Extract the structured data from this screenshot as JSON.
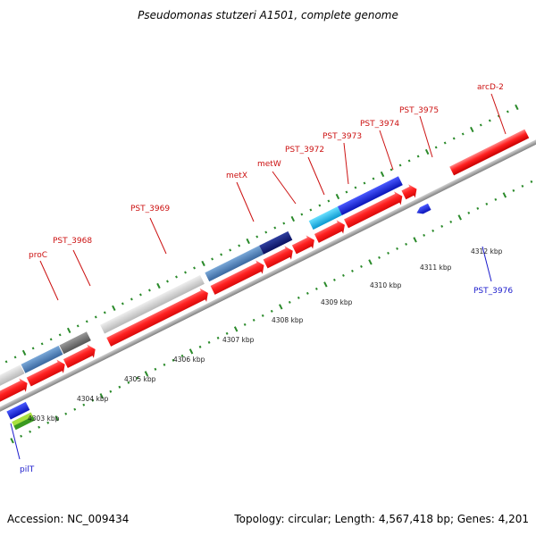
{
  "title": "Pseudomonas stutzeri A1501, complete genome",
  "footer": {
    "accession": "Accession: NC_009434",
    "summary": "Topology: circular; Length: 4,567,418 bp; Genes: 4,201"
  },
  "colors": {
    "cds": "#ff2020",
    "trna": "#9a9a9a",
    "blue": "#1e2ee0",
    "steel": "#4a78b0",
    "navy": "#101a70",
    "cyan": "#19b8e8",
    "green": "#3a9a20",
    "lime": "#a8e040",
    "backbone": "#999999",
    "tick": "#2a8a2a",
    "label_red": "#cc1111",
    "label_blue": "#1a1acc"
  },
  "scale_labels": [
    "4303 kbp",
    "4304 kbp",
    "4305 kbp",
    "4306 kbp",
    "4307 kbp",
    "4308 kbp",
    "4309 kbp",
    "4310 kbp",
    "4311 kbp",
    "4312 kbp"
  ],
  "gene_labels_forward": [
    "proC",
    "PST_3968",
    "PST_3969",
    "metX",
    "metW",
    "PST_3972",
    "PST_3973",
    "PST_3974",
    "PST_3975",
    "arcD-2"
  ],
  "gene_labels_reverse": [
    "pilT",
    "PST_3976"
  ]
}
